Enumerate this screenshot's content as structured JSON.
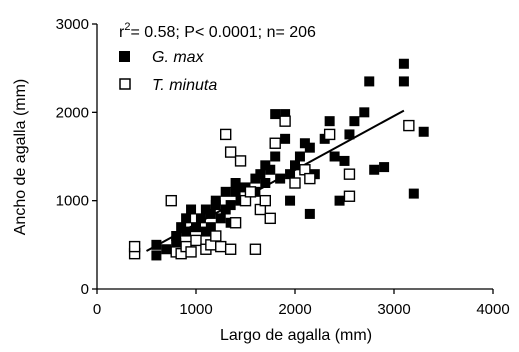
{
  "chart_data": {
    "type": "scatter",
    "title": "",
    "xlabel": "Largo de agalla (mm)",
    "ylabel": "Ancho de agalla (mm)",
    "xlim": [
      0,
      4000
    ],
    "ylim": [
      0,
      3000
    ],
    "xticks": [
      "0",
      "1000",
      "2000",
      "3000",
      "4000"
    ],
    "yticks": [
      "0",
      "1000",
      "2000",
      "3000"
    ],
    "stats": {
      "r2_prefix": "r",
      "r2_exp": "2",
      "rest": "= 0.58; P< 0.0001; n= 206"
    },
    "legend_position": "top-left",
    "series": [
      {
        "name": "G. max",
        "marker": "filled-square",
        "color": "#000000",
        "points": [
          [
            600,
            500
          ],
          [
            600,
            380
          ],
          [
            700,
            450
          ],
          [
            800,
            600
          ],
          [
            800,
            520
          ],
          [
            850,
            700
          ],
          [
            900,
            800
          ],
          [
            900,
            650
          ],
          [
            950,
            900
          ],
          [
            1000,
            700
          ],
          [
            1000,
            550
          ],
          [
            1050,
            800
          ],
          [
            1100,
            650
          ],
          [
            1100,
            900
          ],
          [
            1150,
            850
          ],
          [
            1150,
            700
          ],
          [
            1200,
            1000
          ],
          [
            1200,
            950
          ],
          [
            1250,
            800
          ],
          [
            1300,
            1100
          ],
          [
            1300,
            900
          ],
          [
            1350,
            950
          ],
          [
            1350,
            750
          ],
          [
            1400,
            1100
          ],
          [
            1400,
            1200
          ],
          [
            1450,
            1000
          ],
          [
            1500,
            1150
          ],
          [
            1500,
            1000
          ],
          [
            1550,
            1100
          ],
          [
            1600,
            1250
          ],
          [
            1600,
            1100
          ],
          [
            1650,
            1300
          ],
          [
            1700,
            1200
          ],
          [
            1700,
            1400
          ],
          [
            1750,
            1350
          ],
          [
            1800,
            1500
          ],
          [
            1800,
            1980
          ],
          [
            1850,
            1250
          ],
          [
            1900,
            1700
          ],
          [
            1900,
            1980
          ],
          [
            1950,
            1000
          ],
          [
            1950,
            1300
          ],
          [
            2000,
            1400
          ],
          [
            2050,
            1500
          ],
          [
            2100,
            1650
          ],
          [
            2150,
            1600
          ],
          [
            2150,
            850
          ],
          [
            2200,
            1300
          ],
          [
            2300,
            1700
          ],
          [
            2350,
            1900
          ],
          [
            2400,
            1500
          ],
          [
            2450,
            1000
          ],
          [
            2500,
            1450
          ],
          [
            2550,
            1750
          ],
          [
            2600,
            1900
          ],
          [
            2700,
            2000
          ],
          [
            2750,
            2350
          ],
          [
            2800,
            1350
          ],
          [
            2900,
            1380
          ],
          [
            3100,
            2350
          ],
          [
            3100,
            2550
          ],
          [
            3200,
            1080
          ],
          [
            3300,
            1780
          ]
        ]
      },
      {
        "name": "T. minuta",
        "marker": "open-square",
        "color": "#000000",
        "points": [
          [
            380,
            400
          ],
          [
            380,
            480
          ],
          [
            750,
            1000
          ],
          [
            800,
            420
          ],
          [
            850,
            400
          ],
          [
            900,
            480
          ],
          [
            950,
            420
          ],
          [
            1000,
            550
          ],
          [
            1100,
            450
          ],
          [
            1150,
            500
          ],
          [
            1200,
            600
          ],
          [
            1250,
            480
          ],
          [
            1300,
            1750
          ],
          [
            1350,
            1550
          ],
          [
            1350,
            450
          ],
          [
            1400,
            750
          ],
          [
            1450,
            1450
          ],
          [
            1500,
            1000
          ],
          [
            1550,
            1100
          ],
          [
            1600,
            450
          ],
          [
            1650,
            900
          ],
          [
            1700,
            1000
          ],
          [
            1750,
            800
          ],
          [
            1800,
            1650
          ],
          [
            1900,
            1900
          ],
          [
            2000,
            1200
          ],
          [
            2100,
            1350
          ],
          [
            2150,
            1250
          ],
          [
            2350,
            1750
          ],
          [
            2550,
            1300
          ],
          [
            2550,
            1050
          ],
          [
            3150,
            1850
          ]
        ]
      }
    ],
    "regression": {
      "x1": 500,
      "y1": 430,
      "x2": 3100,
      "y2": 2020
    }
  }
}
